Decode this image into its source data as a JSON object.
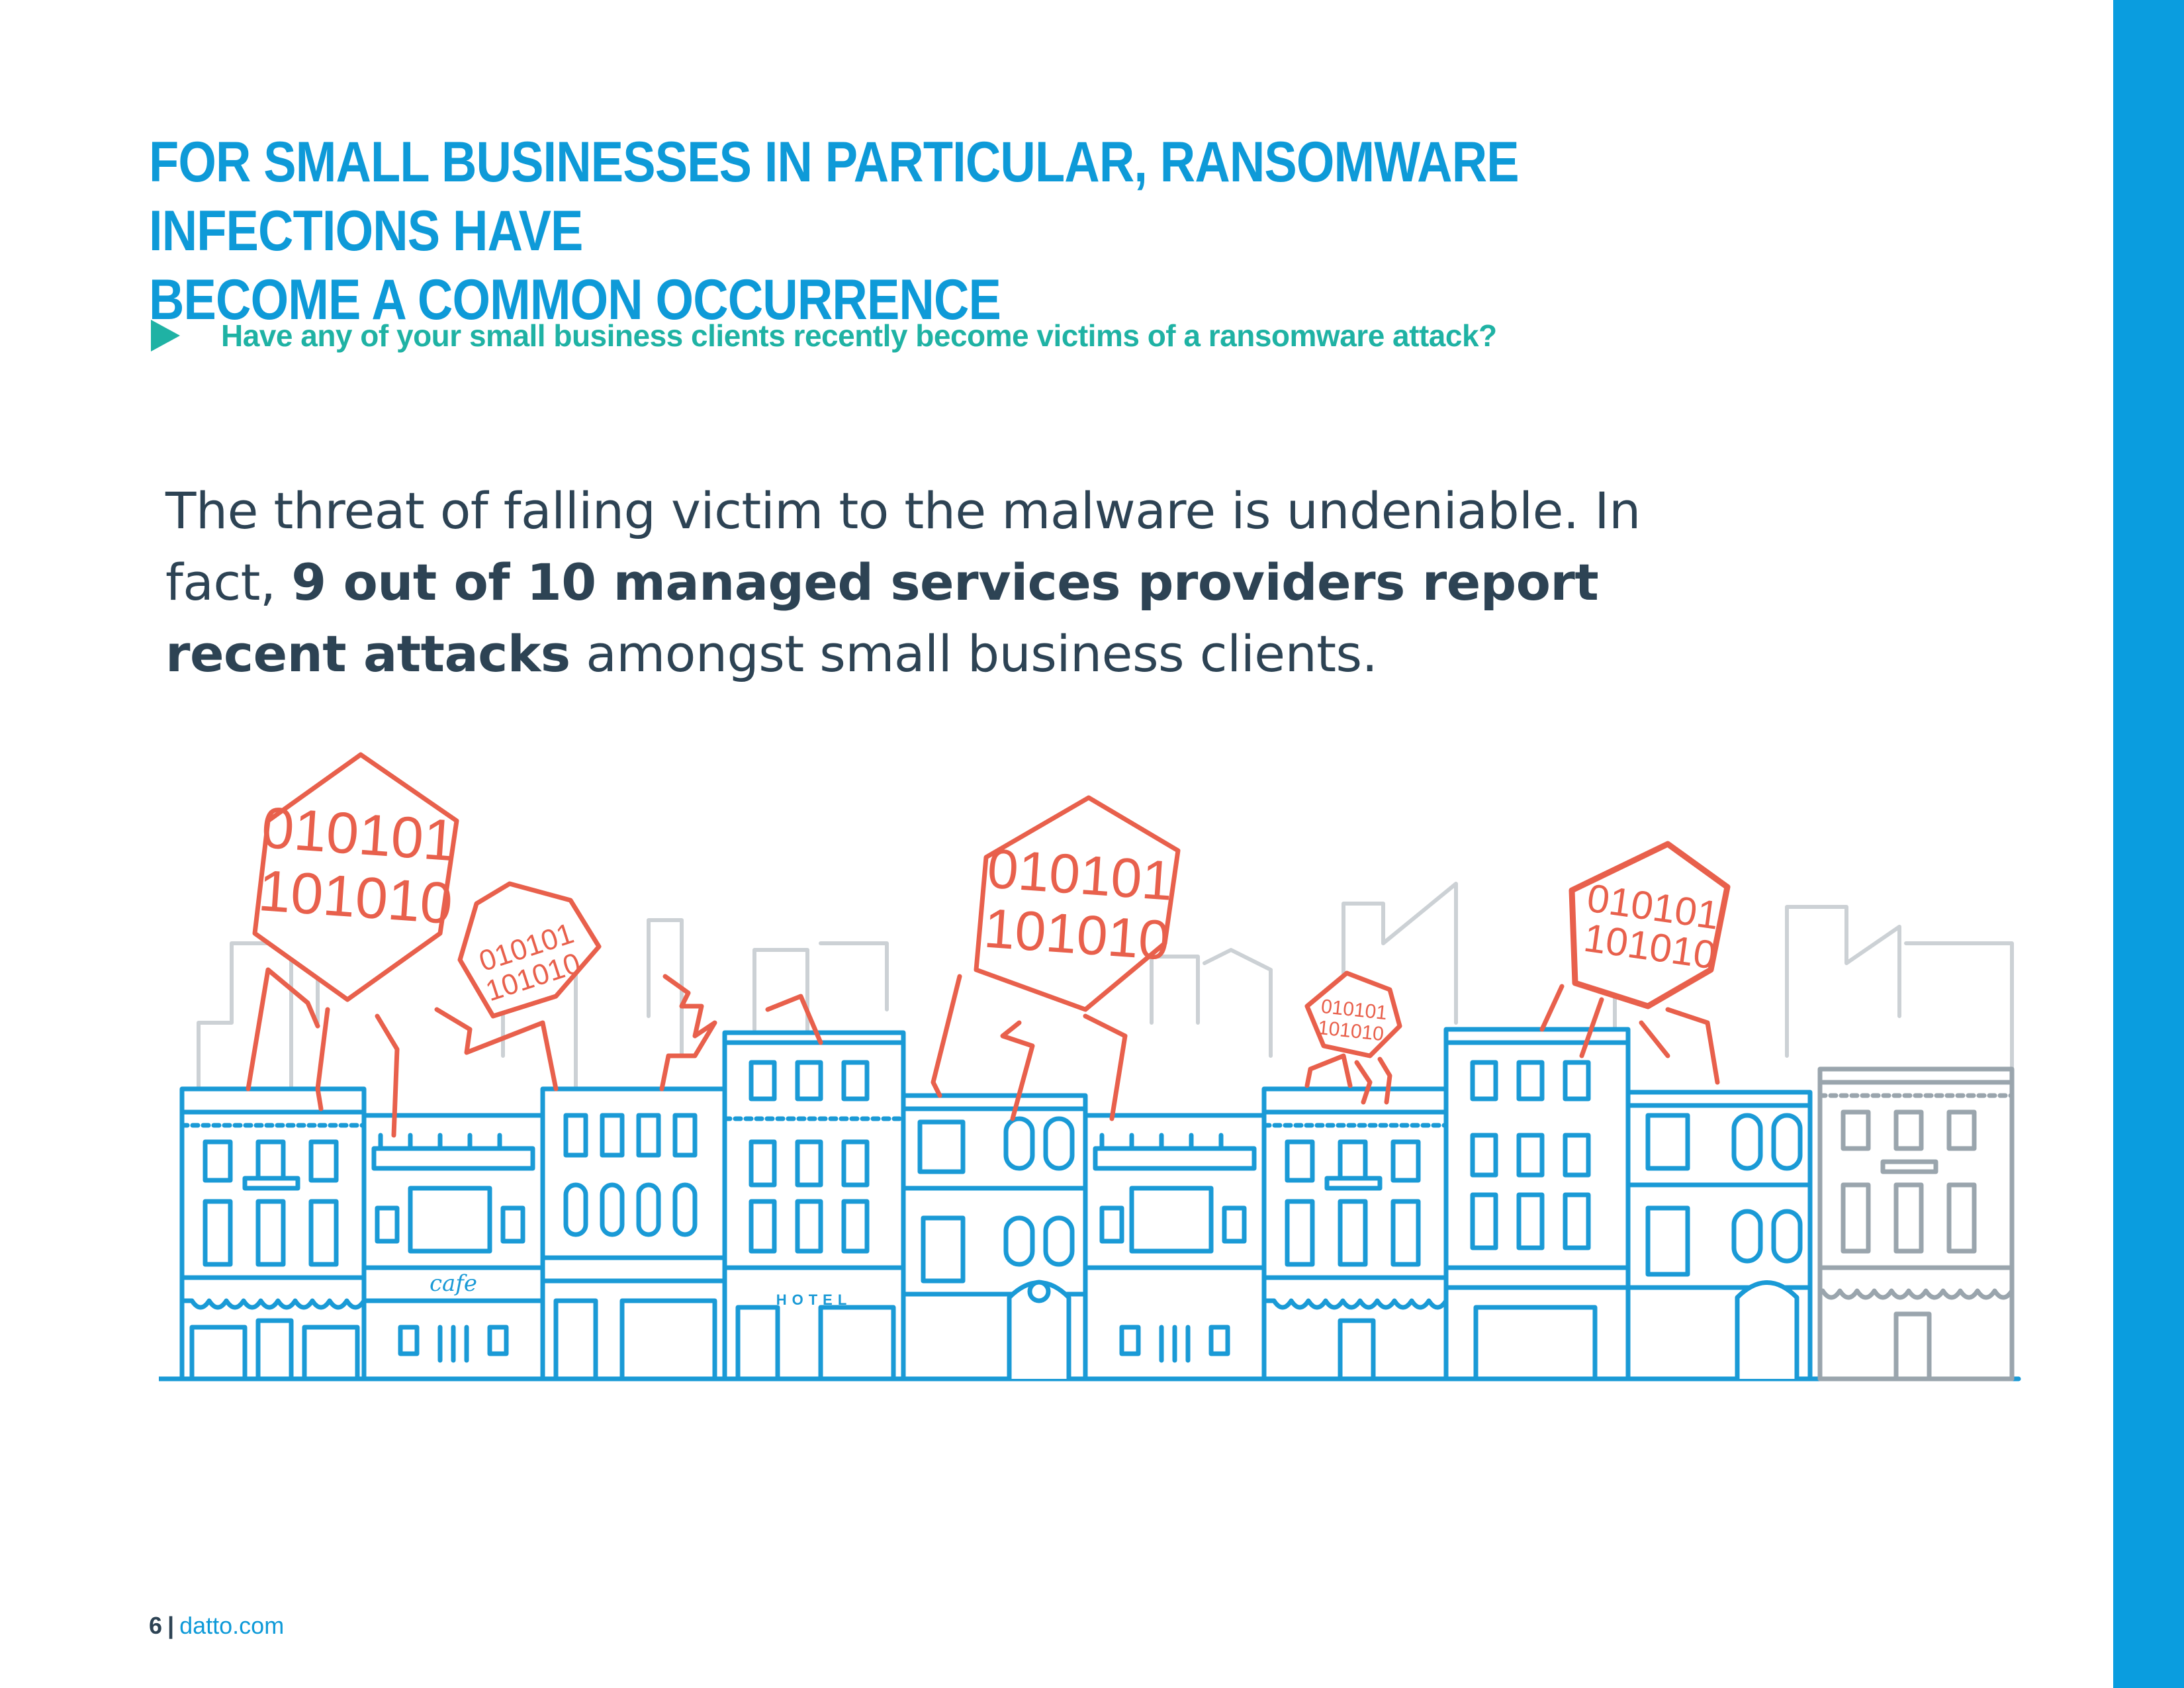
{
  "heading": {
    "line1": "FOR SMALL BUSINESSES IN PARTICULAR, RANSOMWARE INFECTIONS HAVE",
    "line2": "BECOME A COMMON OCCURRENCE"
  },
  "question": "Have any of your small business clients recently become victims of a ransomware attack?",
  "body": {
    "part1": "The threat of falling victim to the malware is undeniable. In fact, ",
    "bold": "9 out of 10 managed services providers report recent attacks",
    "part2": " amongst small business clients."
  },
  "illustration": {
    "binary_line1": "010101",
    "binary_line2": "101010",
    "cafe_sign": "cafe",
    "hotel_sign": "HOTEL"
  },
  "footer": {
    "page_number": "6",
    "separator": "|",
    "site": "datto.com"
  },
  "colors": {
    "accent_blue": "#0e9ad8",
    "teal": "#1fb2a4",
    "virus_red": "#e8604c",
    "building_blue": "#1a9ad6",
    "building_grey": "#9aa5ad",
    "skyline_grey": "#ccd1d5",
    "text_dark": "#2d4354"
  }
}
